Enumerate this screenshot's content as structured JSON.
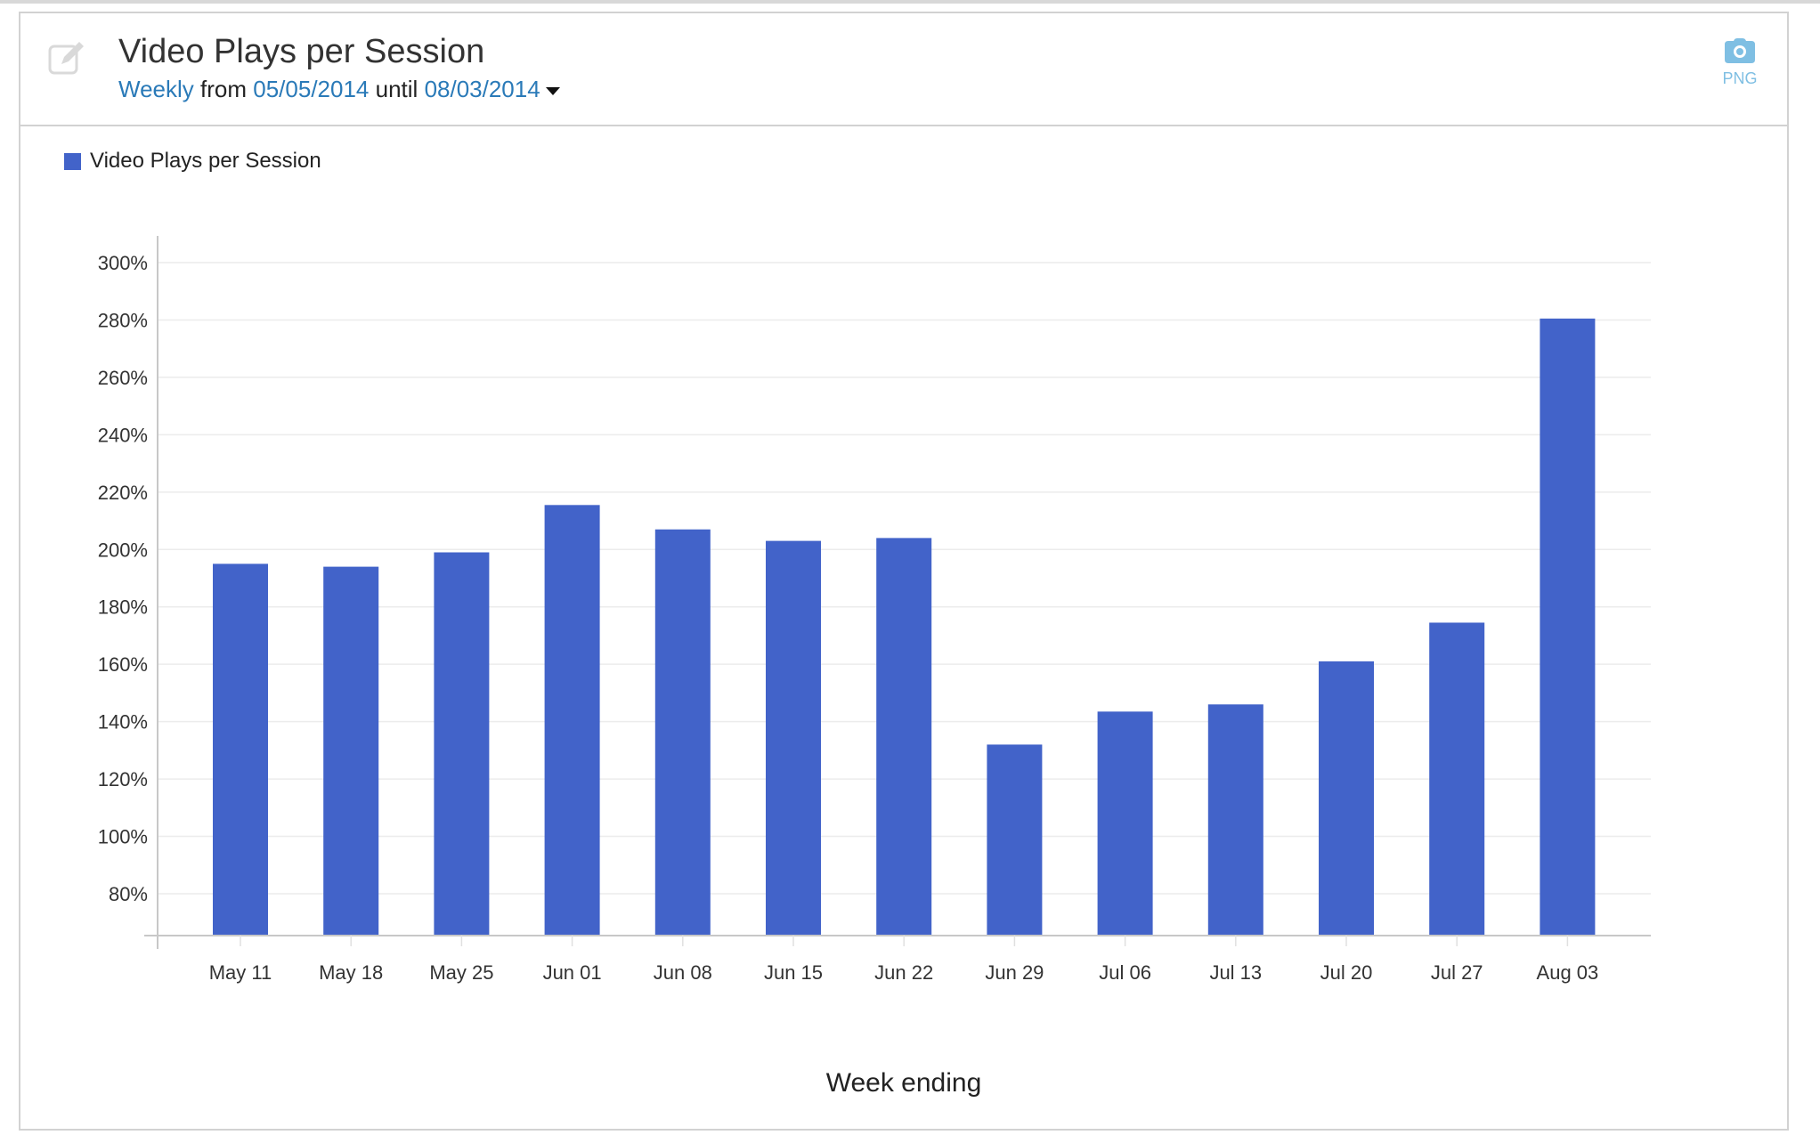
{
  "header": {
    "title": "Video Plays per Session",
    "frequency": "Weekly",
    "from_label": "from",
    "start_date": "05/05/2014",
    "until_label": "until",
    "end_date": "08/03/2014",
    "export_label": "PNG",
    "icons": {
      "edit": "edit-icon",
      "export": "camera-icon",
      "dropdown": "caret-down-icon"
    }
  },
  "colors": {
    "bar": "#4263c9",
    "link": "#2a7ab8",
    "export": "#7fbfe3"
  },
  "chart_data": {
    "type": "bar",
    "title": "",
    "xlabel": "Week ending",
    "ylabel": "",
    "ylim": [
      65,
      300
    ],
    "yticks": [
      80,
      100,
      120,
      140,
      160,
      180,
      200,
      220,
      240,
      260,
      280,
      300
    ],
    "ytick_labels": [
      "80%",
      "100%",
      "120%",
      "140%",
      "160%",
      "180%",
      "200%",
      "220%",
      "240%",
      "260%",
      "280%",
      "300%"
    ],
    "grid": true,
    "legend": "top-left",
    "categories": [
      "May 11",
      "May 18",
      "May 25",
      "Jun 01",
      "Jun 08",
      "Jun 15",
      "Jun 22",
      "Jun 29",
      "Jul 06",
      "Jul 13",
      "Jul 20",
      "Jul 27",
      "Aug 03"
    ],
    "series": [
      {
        "name": "Video Plays per Session",
        "color": "#4263c9",
        "values": [
          195,
          194,
          199,
          215.5,
          207,
          203,
          204,
          132,
          143.5,
          146,
          161,
          174.5,
          280.5
        ]
      }
    ]
  }
}
